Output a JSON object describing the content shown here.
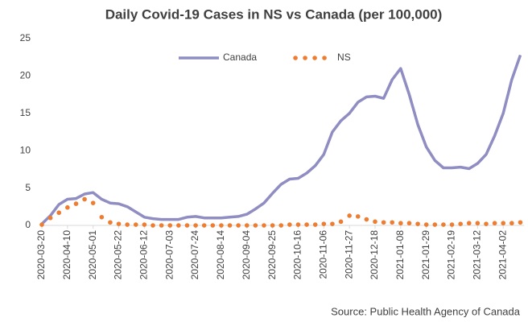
{
  "chart_data": {
    "type": "line",
    "title": "Daily Covid-19 Cases in NS vs Canada (per 100,000)",
    "source": "Source: Public Health Agency of Canada",
    "x": [
      "2020-03-20",
      "2020-03-27",
      "2020-04-03",
      "2020-04-10",
      "2020-04-17",
      "2020-04-24",
      "2020-05-01",
      "2020-05-08",
      "2020-05-15",
      "2020-05-22",
      "2020-05-29",
      "2020-06-05",
      "2020-06-12",
      "2020-06-19",
      "2020-06-26",
      "2020-07-03",
      "2020-07-10",
      "2020-07-17",
      "2020-07-24",
      "2020-07-31",
      "2020-08-07",
      "2020-08-14",
      "2020-08-21",
      "2020-08-28",
      "2020-09-04",
      "2020-09-11",
      "2020-09-18",
      "2020-09-25",
      "2020-10-02",
      "2020-10-09",
      "2020-10-16",
      "2020-10-23",
      "2020-10-30",
      "2020-11-06",
      "2020-11-13",
      "2020-11-20",
      "2020-11-27",
      "2020-12-04",
      "2020-12-11",
      "2020-12-18",
      "2020-12-25",
      "2021-01-01",
      "2021-01-08",
      "2021-01-15",
      "2021-01-22",
      "2021-01-29",
      "2021-02-05",
      "2021-02-12",
      "2021-02-19",
      "2021-02-26",
      "2021-03-05",
      "2021-03-12",
      "2021-03-19",
      "2021-03-26",
      "2021-04-02",
      "2021-04-09",
      "2021-04-16"
    ],
    "series": [
      {
        "name": "Canada",
        "color": "#8f8dc2",
        "style": "line",
        "values": [
          0.2,
          1.3,
          2.8,
          3.5,
          3.6,
          4.2,
          4.4,
          3.5,
          3.0,
          2.9,
          2.5,
          1.8,
          1.1,
          0.9,
          0.8,
          0.8,
          0.8,
          1.1,
          1.2,
          1.0,
          1.0,
          1.0,
          1.1,
          1.2,
          1.5,
          2.2,
          3.0,
          4.3,
          5.5,
          6.2,
          6.3,
          7.0,
          8.0,
          9.5,
          12.5,
          14.0,
          15.0,
          16.5,
          17.2,
          17.3,
          17.0,
          19.5,
          21.0,
          17.5,
          13.5,
          10.5,
          8.7,
          7.7,
          7.7,
          7.8,
          7.6,
          8.3,
          9.5,
          12.0,
          15.0,
          19.5,
          22.8
        ]
      },
      {
        "name": "NS",
        "color": "#ed7d31",
        "style": "dots",
        "values": [
          0.1,
          1.0,
          1.7,
          2.4,
          2.9,
          3.5,
          3.0,
          1.1,
          0.4,
          0.2,
          0.1,
          0.1,
          0.1,
          0,
          0,
          0,
          0,
          0,
          0,
          0,
          0,
          0,
          0,
          0,
          0,
          0,
          0,
          0,
          0,
          0.1,
          0.1,
          0.1,
          0.1,
          0.2,
          0.2,
          0.5,
          1.3,
          1.2,
          0.8,
          0.5,
          0.4,
          0.4,
          0.3,
          0.3,
          0.2,
          0.1,
          0.1,
          0.1,
          0.1,
          0.2,
          0.3,
          0.3,
          0.2,
          0.3,
          0.3,
          0.3,
          0.4
        ]
      }
    ],
    "xlim": [
      "2020-03-20",
      "2021-04-19"
    ],
    "xticks": [
      "2020-03-20",
      "2020-04-10",
      "2020-05-01",
      "2020-05-22",
      "2020-06-12",
      "2020-07-03",
      "2020-07-24",
      "2020-08-14",
      "2020-09-04",
      "2020-09-25",
      "2020-10-16",
      "2020-11-06",
      "2020-11-27",
      "2020-12-18",
      "2021-01-08",
      "2021-01-29",
      "2021-02-19",
      "2021-03-12",
      "2021-04-02"
    ],
    "ylim": [
      0,
      25
    ],
    "yticks": [
      0,
      5,
      10,
      15,
      20,
      25
    ],
    "grid": false,
    "legend": "top"
  }
}
